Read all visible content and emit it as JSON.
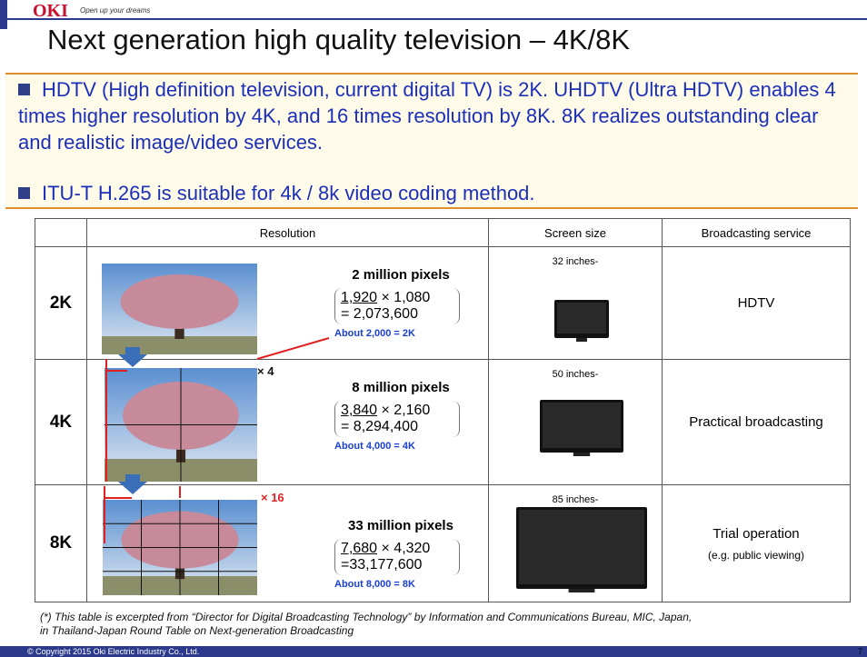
{
  "header": {
    "logo": "OKI",
    "tagline": "Open up your dreams"
  },
  "title": "Next generation high quality television – 4K/8K",
  "bullets": [
    "HDTV (High definition television, current digital TV) is 2K. UHDTV (Ultra HDTV) enables 4 times higher resolution by 4K, and 16 times resolution by 8K. 8K realizes outstanding clear and realistic image/video services.",
    "ITU-T H.265 is suitable for 4k / 8k video coding method."
  ],
  "table": {
    "columns": [
      "Resolution",
      "Screen size",
      "Broadcasting service"
    ],
    "rows": [
      {
        "label": "2K",
        "pixels": "2 million pixels",
        "width": "1,920",
        "height": "× 1,080",
        "total": "= 2,073,600",
        "about": "About 2,000 = 2K",
        "screen": "32 inches-",
        "service": [
          "HDTV"
        ]
      },
      {
        "label": "4K",
        "pixels": "8 million pixels",
        "width": "3,840",
        "height": "× 2,160",
        "total": "= 8,294,400",
        "about": "About 4,000 = 4K",
        "screen": "50 inches-",
        "service": [
          "Practical broadcasting"
        ]
      },
      {
        "label": "8K",
        "pixels": "33 million pixels",
        "width": "7,680",
        "height": "× 4,320",
        "total": "=33,177,600",
        "about": "About 8,000 = 8K",
        "screen": "85 inches-",
        "service": [
          "Trial operation",
          "(e.g. public viewing)"
        ]
      }
    ],
    "multipliers": [
      "× 4",
      "× 16"
    ]
  },
  "footnote": [
    "(*) This table is excerpted from “Director for Digital Broadcasting Technology” by Information and Communications Bureau, MIC, Japan,",
    "in Thailand-Japan Round Table on Next-generation Broadcasting"
  ],
  "copyright": "© Copyright 2015 Oki Electric Industry Co., Ltd.",
  "page": "7"
}
